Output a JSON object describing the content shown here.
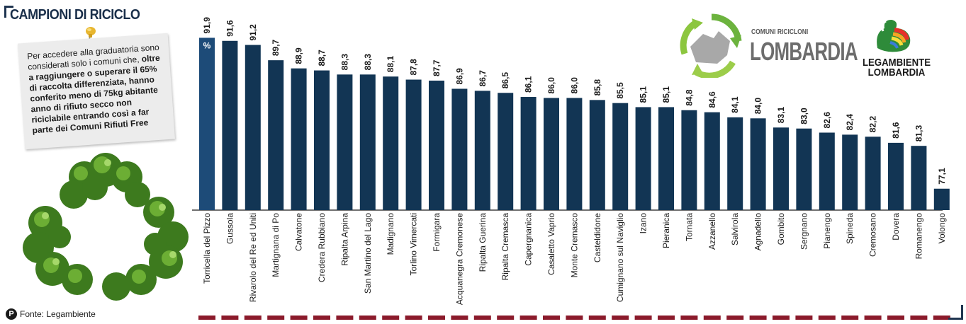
{
  "title": "CAMPIONI DI RICICLO",
  "note": {
    "text_plain": "Per accedere alla graduatoria sono considerati solo i comuni che, ",
    "text_bold": "oltre a raggiungere o superare il 65% di raccolta differenziata, hanno conferito meno di 75kg abitante anno di rifiuto secco non riciclabile entrando così a far parte dei ",
    "text_tail_bold": "Comuni Rifiuti Free"
  },
  "source": {
    "icon_letter": "P",
    "text": "Fonte: Legambiente"
  },
  "logos": {
    "comuni_ricicloni": "COMUNI RICICLONI",
    "lombardia": "LOMBARDIA",
    "legambiente_line1": "LEGAMBIENTE",
    "legambiente_line2": "LOMBARDIA"
  },
  "colors": {
    "bar": "#123554",
    "first_bar": "#1d4b78",
    "marker": "#8b1a2b",
    "title": "#1a2f4a"
  },
  "chart_data": {
    "type": "bar",
    "unit_label": "%",
    "ylim": [
      75,
      92
    ],
    "categories": [
      "Torricella del Pizzo",
      "Gussola",
      "Rivarolo del Re ed Uniti",
      "Martignana di Po",
      "Calvatone",
      "Credera Rubbiano",
      "Ripalta Arpina",
      "San Martino del Lago",
      "Madignano",
      "Torlino Vimercati",
      "Formigara",
      "Acquanegra Cremonese",
      "Ripalta Guerina",
      "Ripalta Cremasca",
      "Capergnanica",
      "Casaletto Vaprio",
      "Monte Cremasco",
      "Casteldidone",
      "Cumignano sul Naviglio",
      "Izano",
      "Pieranica",
      "Tornata",
      "Azzanello",
      "Salvirola",
      "Agnadello",
      "Gombito",
      "Sergnano",
      "Pianengo",
      "Spineda",
      "Cremosano",
      "Dovera",
      "Romanengo",
      "Volongo"
    ],
    "values": [
      91.9,
      91.6,
      91.2,
      89.7,
      88.9,
      88.7,
      88.3,
      88.3,
      88.1,
      87.8,
      87.7,
      86.9,
      86.7,
      86.5,
      86.1,
      86.0,
      86.0,
      85.8,
      85.5,
      85.1,
      85.1,
      84.8,
      84.6,
      84.1,
      84.0,
      83.1,
      83.0,
      82.6,
      82.4,
      82.2,
      81.6,
      81.3,
      77.1
    ],
    "value_labels": [
      "91,9",
      "91,6",
      "91,2",
      "89,7",
      "88,9",
      "88,7",
      "88,3",
      "88,3",
      "88,1",
      "87,8",
      "87,7",
      "86,9",
      "86,7",
      "86,5",
      "86,1",
      "86,0",
      "86,0",
      "85,8",
      "85,5",
      "85,1",
      "85,1",
      "84,8",
      "84,6",
      "84,1",
      "84,0",
      "83,1",
      "83,0",
      "82,6",
      "82,4",
      "82,2",
      "81,6",
      "81,3",
      "77,1"
    ],
    "grid": false,
    "legend": "none"
  }
}
